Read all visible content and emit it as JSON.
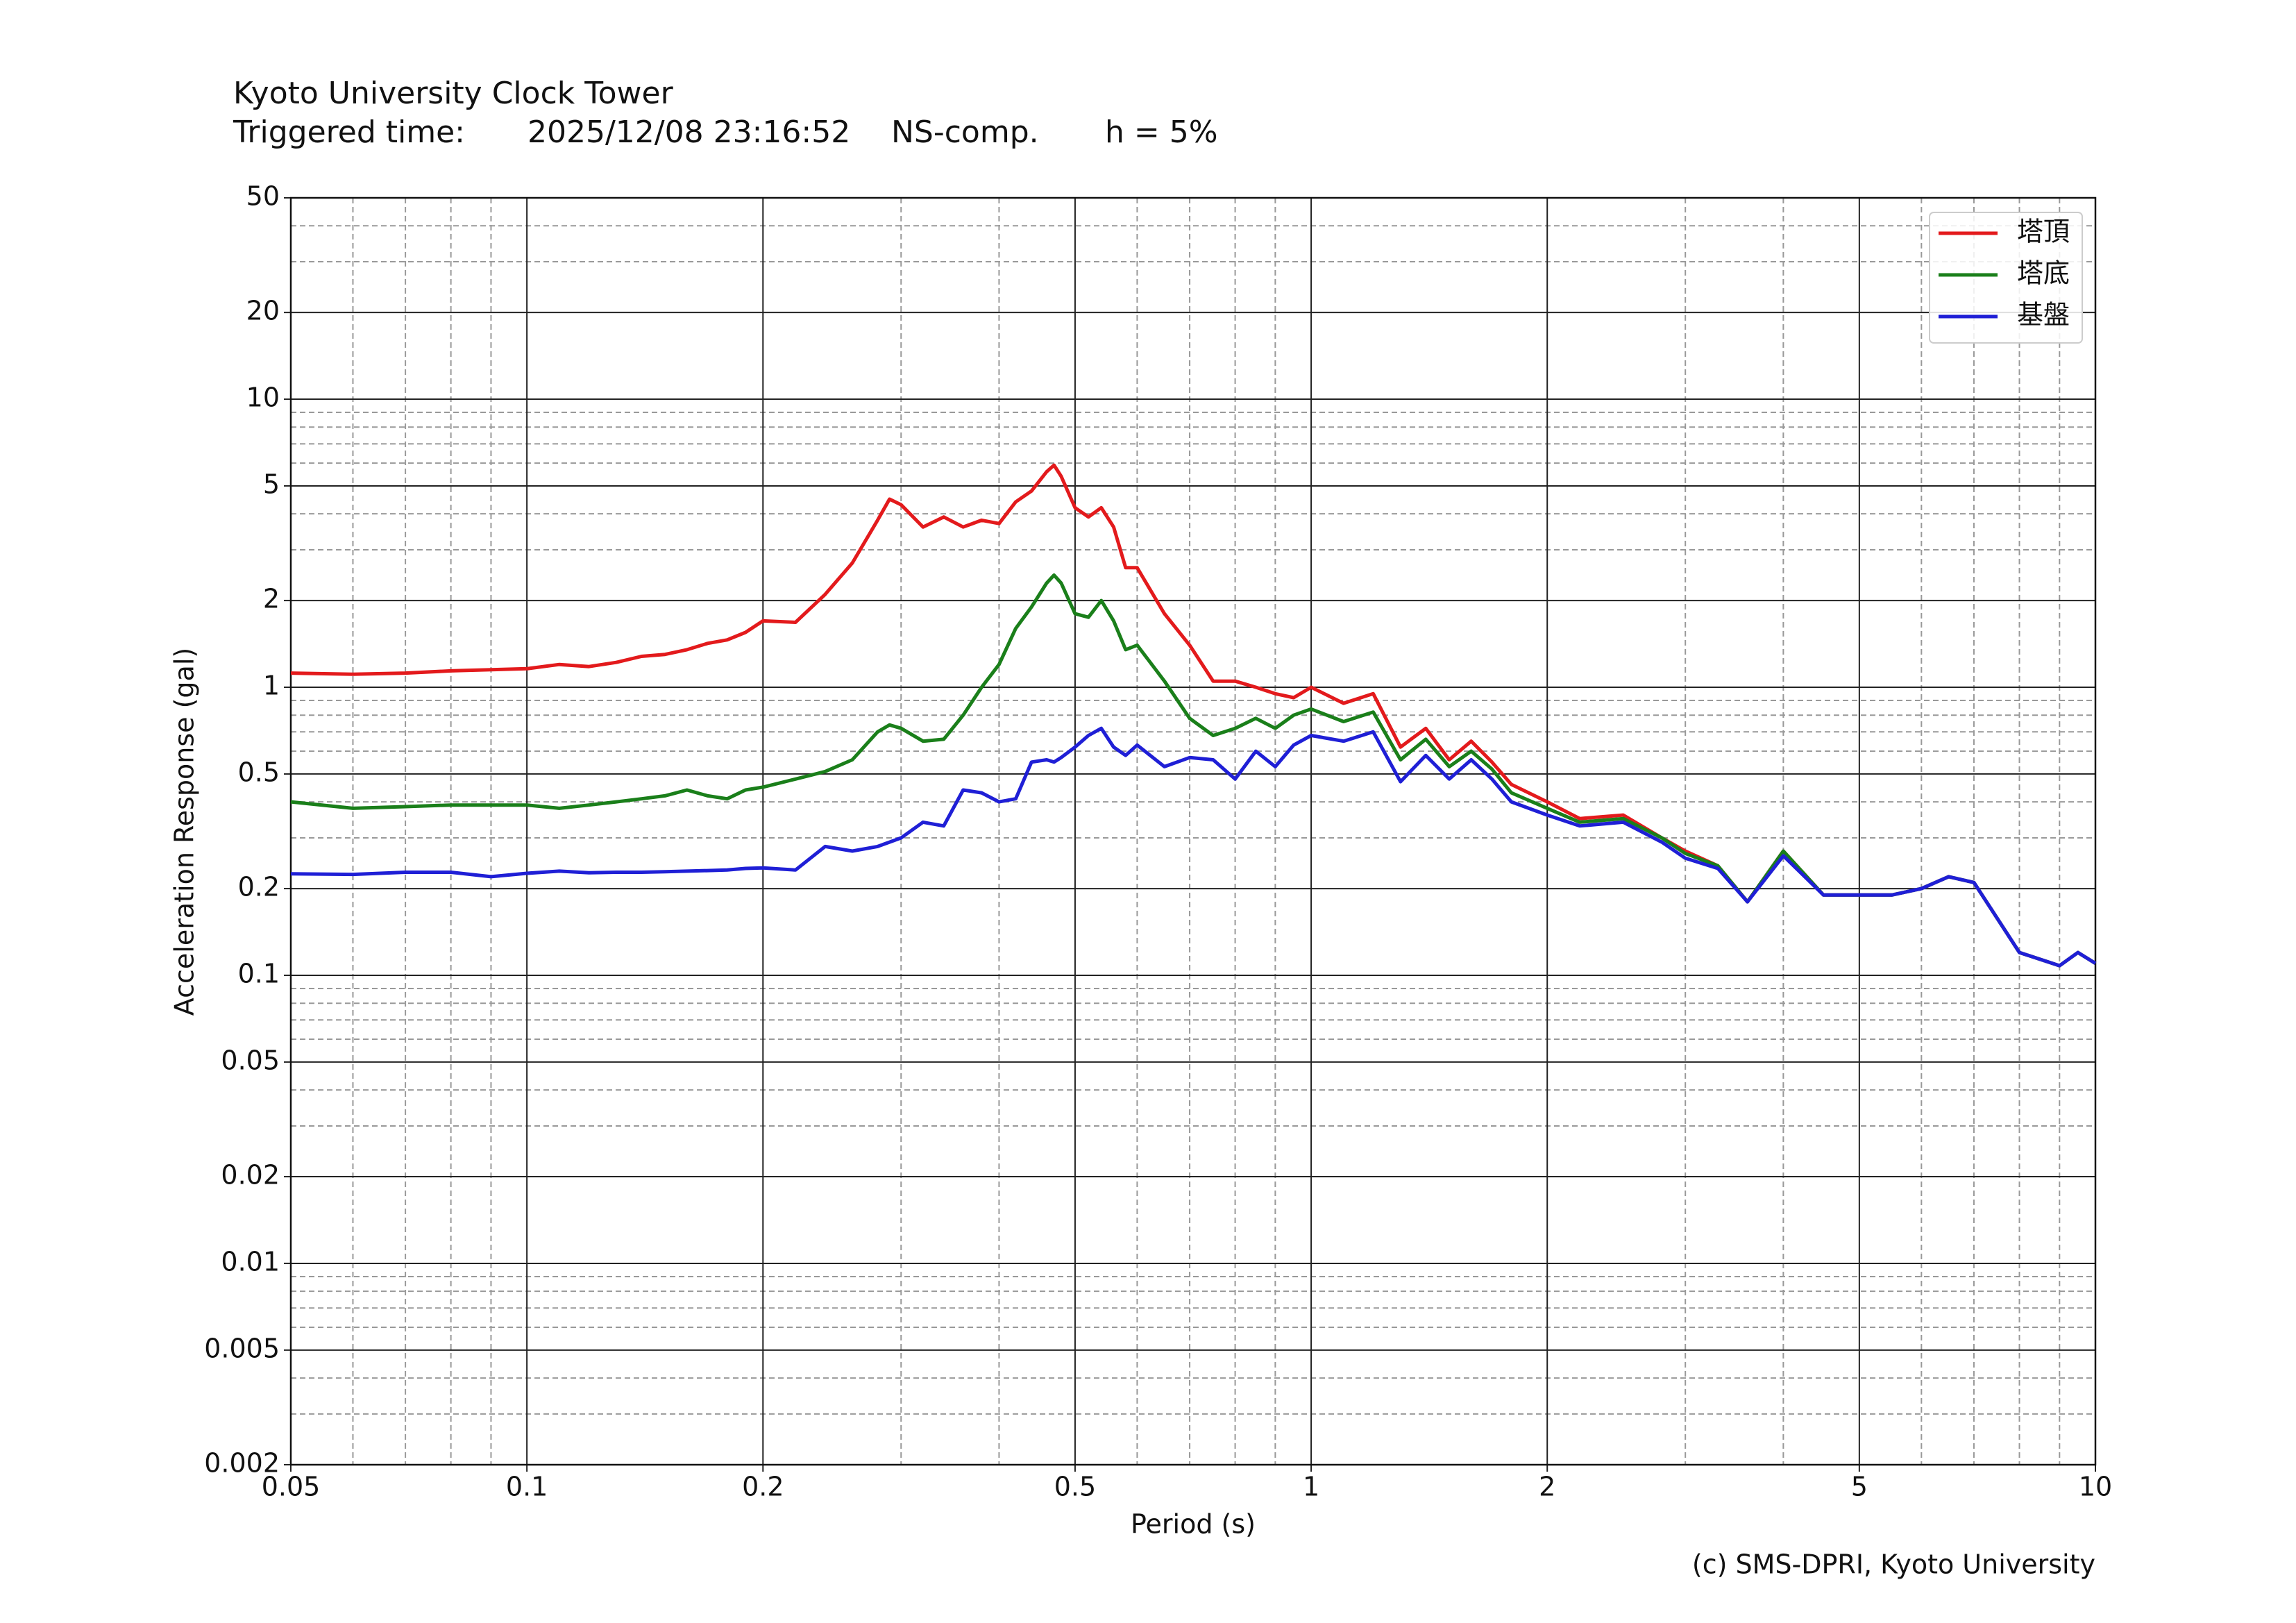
{
  "chart_data": {
    "type": "line",
    "title": "Kyoto University Clock Tower",
    "subtitle": {
      "label": "Triggered time:",
      "time": "2025/12/08 23:16:52",
      "component": "NS-comp.",
      "damping": "h = 5%"
    },
    "xlabel": "Period (s)",
    "ylabel": "Acceleration Response (gal)",
    "footer": "(c) SMS-DPRI, Kyoto University",
    "xscale": "log",
    "yscale": "log",
    "grid": true,
    "legend_loc": "upper right",
    "xlim": [
      0.05,
      10
    ],
    "ylim": [
      0.002,
      50
    ],
    "xticks": [
      0.05,
      0.1,
      0.2,
      0.5,
      1,
      2,
      5,
      10
    ],
    "yticks": [
      0.002,
      0.005,
      0.01,
      0.02,
      0.05,
      0.1,
      0.2,
      0.5,
      1,
      2,
      5,
      10,
      20,
      50
    ],
    "xminorticks": [
      0.06,
      0.07,
      0.08,
      0.09,
      0.3,
      0.4,
      0.6,
      0.7,
      0.8,
      0.9,
      3,
      4,
      6,
      7,
      8,
      9
    ],
    "yminorticks": [
      0.003,
      0.004,
      0.006,
      0.007,
      0.008,
      0.009,
      0.03,
      0.04,
      0.06,
      0.07,
      0.08,
      0.09,
      0.3,
      0.4,
      0.6,
      0.7,
      0.8,
      0.9,
      3,
      4,
      6,
      7,
      8,
      9,
      30,
      40
    ],
    "x": [
      0.05,
      0.06,
      0.07,
      0.08,
      0.09,
      0.1,
      0.11,
      0.12,
      0.13,
      0.14,
      0.15,
      0.16,
      0.17,
      0.18,
      0.19,
      0.2,
      0.22,
      0.24,
      0.26,
      0.28,
      0.29,
      0.3,
      0.32,
      0.34,
      0.36,
      0.38,
      0.4,
      0.42,
      0.44,
      0.46,
      0.47,
      0.48,
      0.5,
      0.52,
      0.54,
      0.56,
      0.58,
      0.6,
      0.65,
      0.7,
      0.75,
      0.8,
      0.85,
      0.9,
      0.95,
      1.0,
      1.1,
      1.2,
      1.3,
      1.4,
      1.5,
      1.6,
      1.7,
      1.8,
      2.0,
      2.2,
      2.5,
      2.8,
      3.0,
      3.3,
      3.6,
      4.0,
      4.5,
      5.0,
      5.5,
      6.0,
      6.5,
      7.0,
      8.0,
      9.0,
      9.5,
      10
    ],
    "series": [
      {
        "name": "塔頂",
        "color": "#e31a1c",
        "values": [
          1.12,
          1.11,
          1.12,
          1.14,
          1.15,
          1.16,
          1.2,
          1.18,
          1.22,
          1.28,
          1.3,
          1.35,
          1.42,
          1.46,
          1.55,
          1.7,
          1.68,
          2.1,
          2.7,
          3.8,
          4.5,
          4.3,
          3.6,
          3.9,
          3.6,
          3.8,
          3.7,
          4.4,
          4.8,
          5.6,
          5.9,
          5.4,
          4.2,
          3.9,
          4.2,
          3.6,
          2.6,
          2.6,
          1.8,
          1.4,
          1.05,
          1.05,
          1.0,
          0.95,
          0.92,
          1.0,
          0.88,
          0.95,
          0.62,
          0.72,
          0.56,
          0.65,
          0.55,
          0.46,
          0.4,
          0.35,
          0.36,
          0.3,
          0.27,
          0.24,
          0.18,
          0.27,
          0.19,
          0.19,
          0.19,
          0.2,
          0.22,
          0.21,
          0.12,
          0.108,
          0.12,
          0.11
        ]
      },
      {
        "name": "塔底",
        "color": "#1a7f1a",
        "values": [
          0.4,
          0.38,
          0.385,
          0.39,
          0.39,
          0.39,
          0.38,
          0.39,
          0.4,
          0.41,
          0.42,
          0.44,
          0.42,
          0.41,
          0.44,
          0.45,
          0.48,
          0.51,
          0.56,
          0.7,
          0.74,
          0.72,
          0.65,
          0.66,
          0.8,
          1.0,
          1.2,
          1.6,
          1.9,
          2.3,
          2.45,
          2.3,
          1.8,
          1.75,
          2.0,
          1.7,
          1.35,
          1.4,
          1.05,
          0.78,
          0.68,
          0.72,
          0.78,
          0.72,
          0.8,
          0.84,
          0.76,
          0.82,
          0.56,
          0.66,
          0.53,
          0.6,
          0.52,
          0.43,
          0.38,
          0.34,
          0.35,
          0.3,
          0.265,
          0.24,
          0.18,
          0.27,
          0.19,
          0.19,
          0.19,
          0.2,
          0.22,
          0.21,
          0.12,
          0.108,
          0.12,
          0.11
        ]
      },
      {
        "name": "基盤",
        "color": "#1f1fd6",
        "values": [
          0.225,
          0.224,
          0.228,
          0.228,
          0.22,
          0.226,
          0.23,
          0.227,
          0.228,
          0.228,
          0.229,
          0.23,
          0.231,
          0.232,
          0.235,
          0.236,
          0.232,
          0.28,
          0.27,
          0.28,
          0.29,
          0.3,
          0.34,
          0.33,
          0.44,
          0.43,
          0.4,
          0.41,
          0.55,
          0.56,
          0.55,
          0.57,
          0.62,
          0.68,
          0.72,
          0.62,
          0.58,
          0.63,
          0.53,
          0.57,
          0.56,
          0.48,
          0.6,
          0.53,
          0.63,
          0.68,
          0.65,
          0.7,
          0.47,
          0.58,
          0.48,
          0.56,
          0.48,
          0.4,
          0.36,
          0.33,
          0.34,
          0.29,
          0.255,
          0.235,
          0.18,
          0.26,
          0.19,
          0.19,
          0.19,
          0.2,
          0.22,
          0.21,
          0.12,
          0.108,
          0.12,
          0.11
        ]
      }
    ]
  }
}
